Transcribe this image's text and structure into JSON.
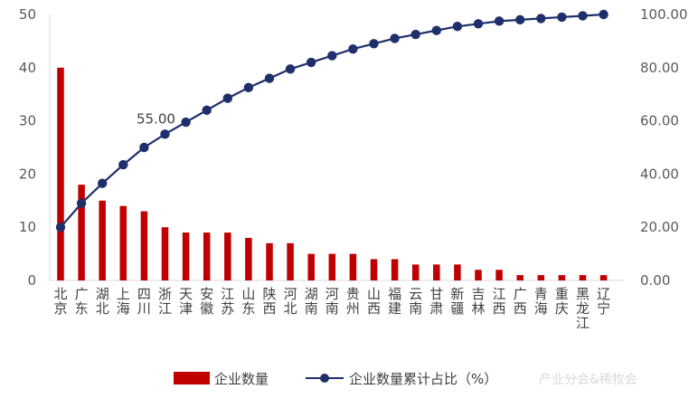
{
  "chart_data": {
    "type": "bar",
    "categories": [
      "北京",
      "广东",
      "湖北",
      "上海",
      "四川",
      "浙江",
      "天津",
      "安徽",
      "江苏",
      "山东",
      "陕西",
      "河北",
      "湖南",
      "河南",
      "贵州",
      "山西",
      "福建",
      "云南",
      "甘肃",
      "新疆",
      "吉林",
      "江西",
      "广西",
      "青海",
      "重庆",
      "黑龙江",
      "辽宁"
    ],
    "series": [
      {
        "name": "企业数量",
        "type": "bar",
        "axis": "left",
        "color": "#c00000",
        "values": [
          40,
          18,
          15,
          14,
          13,
          10,
          9,
          9,
          9,
          8,
          7,
          7,
          5,
          5,
          5,
          4,
          4,
          3,
          3,
          3,
          2,
          2,
          1,
          1,
          1,
          1,
          1
        ]
      },
      {
        "name": "企业数量累计占比（%）",
        "type": "line",
        "axis": "right",
        "color": "#1f2f6b",
        "values": [
          20.0,
          29.0,
          36.5,
          43.5,
          50.0,
          55.0,
          59.5,
          64.0,
          68.5,
          72.5,
          76.0,
          79.5,
          82.0,
          84.5,
          87.0,
          89.0,
          91.0,
          92.5,
          94.0,
          95.5,
          96.5,
          97.5,
          98.0,
          98.5,
          99.0,
          99.5,
          100.0
        ]
      }
    ],
    "y_left": {
      "min": 0,
      "max": 50,
      "ticks": [
        "0",
        "10",
        "20",
        "30",
        "40",
        "50"
      ]
    },
    "y_right": {
      "min": 0,
      "max": 100,
      "ticks": [
        "0.00",
        "20.00",
        "40.00",
        "60.00",
        "80.00",
        "100.00"
      ]
    },
    "annotations": [
      {
        "category": "浙江",
        "series": "企业数量累计占比（%）",
        "text": "55.00"
      }
    ],
    "grid": false,
    "legend": "bottom"
  },
  "watermark": "产业分会&稀牧会"
}
